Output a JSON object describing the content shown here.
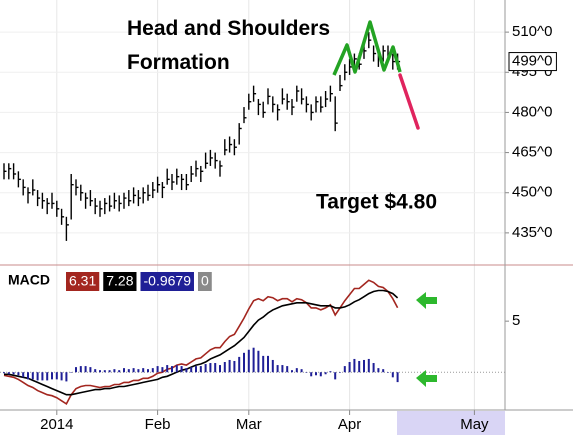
{
  "chart_data": [
    {
      "type": "ohlc",
      "title": "Head and Shoulders Formation",
      "annotation": "Target $4.80",
      "categories": [
        null,
        null,
        null,
        null,
        null,
        null,
        null,
        null,
        null,
        null,
        null,
        "2014",
        null,
        null,
        null,
        null,
        null,
        null,
        null,
        null,
        null,
        null,
        null,
        null,
        null,
        null,
        null,
        null,
        null,
        null,
        null,
        null,
        "Feb",
        null,
        null,
        null,
        null,
        null,
        null,
        null,
        null,
        null,
        null,
        null,
        null,
        null,
        null,
        null,
        null,
        null,
        null,
        "Mar",
        null,
        null,
        null,
        null,
        null,
        null,
        null,
        null,
        null,
        null,
        null,
        null,
        null,
        null,
        null,
        null,
        null,
        null,
        null,
        null,
        "Apr",
        null,
        null,
        null,
        null,
        null,
        null,
        null,
        null,
        null,
        null,
        null,
        null,
        null,
        null,
        null,
        null,
        null,
        null,
        null,
        null,
        null,
        null,
        null,
        null,
        null,
        "May",
        null,
        null,
        null,
        null,
        null,
        null
      ],
      "high": [
        461,
        461,
        461,
        458,
        455,
        452,
        455,
        451,
        450,
        448,
        450,
        447,
        444,
        441,
        457,
        455,
        453,
        450,
        451,
        448,
        447,
        448,
        449,
        450,
        449,
        450,
        451,
        452,
        451,
        452,
        453,
        454,
        456,
        454,
        459,
        457,
        459,
        457,
        457,
        460,
        462,
        460,
        465,
        466,
        465,
        462,
        470,
        471,
        470,
        476,
        482,
        487,
        490,
        485,
        484,
        489,
        486,
        483,
        489,
        487,
        485,
        490,
        489,
        486,
        483,
        486,
        486,
        488,
        490,
        486,
        494,
        498,
        500,
        502,
        502,
        506,
        510,
        505,
        503,
        505,
        505,
        502,
        502,
        null,
        null,
        null,
        null,
        null,
        null,
        null,
        null,
        null,
        null,
        null,
        null,
        null,
        null,
        null,
        null,
        null,
        null,
        null,
        null,
        null,
        null
      ],
      "low": [
        455,
        455,
        455,
        452,
        449,
        446,
        449,
        445,
        444,
        442,
        444,
        441,
        438,
        432,
        440,
        449,
        447,
        444,
        445,
        442,
        441,
        442,
        443,
        444,
        443,
        444,
        445,
        446,
        445,
        446,
        447,
        448,
        450,
        448,
        453,
        451,
        453,
        451,
        451,
        454,
        456,
        454,
        459,
        460,
        459,
        456,
        464,
        465,
        464,
        468,
        476,
        481,
        484,
        479,
        478,
        483,
        480,
        477,
        483,
        481,
        479,
        484,
        483,
        480,
        477,
        480,
        480,
        482,
        484,
        473,
        488,
        492,
        494,
        496,
        496,
        500,
        504,
        499,
        497,
        499,
        499,
        496,
        496,
        null,
        null,
        null,
        null,
        null,
        null,
        null,
        null,
        null,
        null,
        null,
        null,
        null,
        null,
        null,
        null,
        null,
        null,
        null,
        null,
        null,
        null
      ],
      "close": [
        458,
        459,
        457,
        455,
        452,
        450,
        451,
        448,
        447,
        446,
        446,
        444,
        441,
        438,
        453,
        452,
        450,
        448,
        447,
        445,
        444,
        446,
        445,
        447,
        446,
        448,
        447,
        449,
        448,
        450,
        449,
        451,
        453,
        452,
        455,
        454,
        456,
        455,
        453,
        457,
        459,
        458,
        461,
        463,
        462,
        460,
        466,
        468,
        467,
        474,
        478,
        484,
        487,
        483,
        480,
        486,
        483,
        481,
        485,
        484,
        482,
        488,
        485,
        483,
        480,
        484,
        482,
        485,
        487,
        476,
        490,
        495,
        497,
        500,
        498,
        503,
        507,
        502,
        500,
        503,
        501,
        499,
        499,
        null,
        null,
        null,
        null,
        null,
        null,
        null,
        null,
        null,
        null,
        null,
        null,
        null,
        null,
        null,
        null,
        null,
        null,
        null,
        null,
        null,
        null
      ],
      "last_label": "499^0",
      "color": "#000000",
      "ylim": [
        423,
        522
      ],
      "yticks": [
        {
          "value": 510,
          "label": "510^0"
        },
        {
          "value": 495,
          "label": "495^0"
        },
        {
          "value": 480,
          "label": "480^0"
        },
        {
          "value": 465,
          "label": "465^0"
        },
        {
          "value": 450,
          "label": "450^0"
        },
        {
          "value": 435,
          "label": "435^0"
        }
      ],
      "grid": true
    },
    {
      "type": "macd",
      "label": "MACD",
      "series": [
        {
          "color": "#a3261f",
          "values": [
            -0.3,
            -0.4,
            -0.5,
            -0.7,
            -1.0,
            -1.3,
            -1.5,
            -1.8,
            -2.0,
            -2.2,
            -2.3,
            -2.5,
            -2.8,
            -3.1,
            -2.2,
            -1.6,
            -1.4,
            -1.3,
            -1.3,
            -1.4,
            -1.5,
            -1.4,
            -1.4,
            -1.2,
            -1.2,
            -1.0,
            -1.0,
            -0.8,
            -0.8,
            -0.6,
            -0.6,
            -0.4,
            -0.1,
            0.0,
            0.3,
            0.4,
            0.7,
            0.8,
            0.7,
            1.0,
            1.3,
            1.4,
            1.8,
            2.2,
            2.4,
            2.4,
            3.0,
            3.5,
            3.7,
            4.5,
            5.3,
            6.2,
            7.0,
            7.2,
            7.0,
            7.4,
            7.3,
            7.0,
            7.2,
            7.2,
            6.9,
            7.2,
            7.1,
            6.8,
            6.3,
            6.3,
            6.1,
            6.3,
            6.6,
            5.6,
            6.3,
            7.0,
            7.6,
            8.2,
            8.2,
            8.6,
            9.0,
            8.8,
            8.4,
            8.3,
            7.9,
            7.2,
            6.31,
            null,
            null,
            null,
            null,
            null,
            null,
            null,
            null,
            null,
            null,
            null,
            null,
            null,
            null,
            null,
            null,
            null,
            null,
            null,
            null,
            null,
            null
          ]
        },
        {
          "color": "#000000",
          "values": [
            -0.2,
            -0.2,
            -0.3,
            -0.4,
            -0.5,
            -0.6,
            -0.8,
            -1.0,
            -1.2,
            -1.4,
            -1.6,
            -1.8,
            -2.0,
            -2.2,
            -2.2,
            -2.1,
            -2.0,
            -1.9,
            -1.8,
            -1.7,
            -1.7,
            -1.6,
            -1.6,
            -1.5,
            -1.4,
            -1.4,
            -1.3,
            -1.2,
            -1.1,
            -1.0,
            -0.9,
            -0.8,
            -0.7,
            -0.5,
            -0.4,
            -0.2,
            0.0,
            0.2,
            0.3,
            0.5,
            0.7,
            0.8,
            1.0,
            1.3,
            1.5,
            1.7,
            2.0,
            2.3,
            2.6,
            3.0,
            3.4,
            4.0,
            4.6,
            5.1,
            5.4,
            5.8,
            6.1,
            6.3,
            6.5,
            6.6,
            6.7,
            6.8,
            6.8,
            6.8,
            6.7,
            6.6,
            6.5,
            6.5,
            6.5,
            6.3,
            6.3,
            6.4,
            6.6,
            6.9,
            7.1,
            7.4,
            7.7,
            7.9,
            8.0,
            8.0,
            7.9,
            7.7,
            7.28,
            null,
            null,
            null,
            null,
            null,
            null,
            null,
            null,
            null,
            null,
            null,
            null,
            null,
            null,
            null,
            null,
            null,
            null,
            null,
            null,
            null,
            null
          ]
        },
        {
          "type": "histogram",
          "color": "#1f1f96",
          "values": [
            -0.1,
            -0.2,
            -0.2,
            -0.3,
            -0.5,
            -0.7,
            -0.7,
            -0.8,
            -0.8,
            -0.8,
            -0.7,
            -0.7,
            -0.8,
            -0.9,
            0.0,
            0.5,
            0.6,
            0.6,
            0.5,
            0.3,
            0.2,
            0.2,
            0.2,
            0.3,
            0.2,
            0.4,
            0.3,
            0.4,
            0.3,
            0.4,
            0.3,
            0.4,
            0.6,
            0.5,
            0.7,
            0.6,
            0.7,
            0.6,
            0.4,
            0.5,
            0.6,
            0.6,
            0.8,
            0.9,
            0.9,
            0.7,
            1.0,
            1.2,
            1.1,
            1.5,
            1.9,
            2.2,
            2.4,
            2.1,
            1.6,
            1.6,
            1.2,
            0.7,
            0.7,
            0.6,
            0.2,
            0.4,
            0.3,
            0.0,
            -0.4,
            -0.3,
            -0.4,
            -0.2,
            0.1,
            -0.7,
            0.0,
            0.6,
            1.0,
            1.3,
            1.1,
            1.2,
            1.3,
            0.9,
            0.4,
            0.3,
            0.0,
            -0.5,
            -0.9679,
            null,
            null,
            null,
            null,
            null,
            null,
            null,
            null,
            null,
            null,
            null,
            null,
            null,
            null,
            null,
            null,
            null,
            null,
            null,
            null,
            null,
            null
          ]
        }
      ],
      "zero": 0,
      "zero_color": "#8a8a8a",
      "ylim": [
        -3.7,
        10.5
      ],
      "yticks": [
        5
      ]
    }
  ]
}
